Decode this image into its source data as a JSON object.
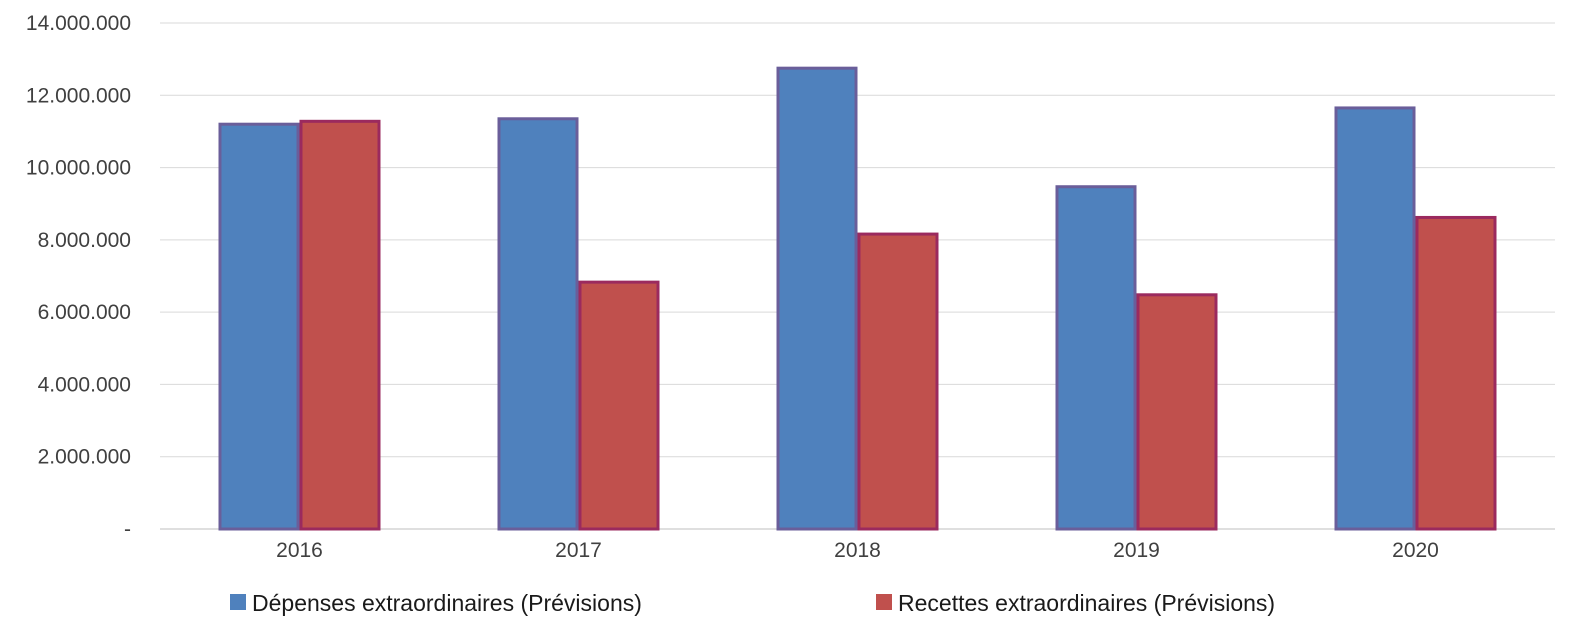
{
  "chart_data": {
    "type": "bar",
    "title": "",
    "xlabel": "",
    "ylabel": "",
    "categories": [
      "2016",
      "2017",
      "2018",
      "2019",
      "2020"
    ],
    "series": [
      {
        "name": "Dépenses extraordinaires (Prévisions)",
        "color": "#4F81BD",
        "stroke": "#6A5E9A",
        "values": [
          11200000,
          11350000,
          12750000,
          9470000,
          11650000
        ]
      },
      {
        "name": "Recettes extraordinaires (Prévisions)",
        "color": "#C0504D",
        "stroke": "#9B2A5E",
        "values": [
          11280000,
          6830000,
          8160000,
          6480000,
          8620000
        ]
      }
    ],
    "ylim": [
      0,
      14000000
    ],
    "ytick_values": [
      0,
      2000000,
      4000000,
      6000000,
      8000000,
      10000000,
      12000000,
      14000000
    ],
    "ytick_labels": [
      "-",
      "2.000.000",
      "4.000.000",
      "6.000.000",
      "8.000.000",
      "10.000.000",
      "12.000.000",
      "14.000.000"
    ],
    "grid": true,
    "legend_position": "bottom"
  }
}
